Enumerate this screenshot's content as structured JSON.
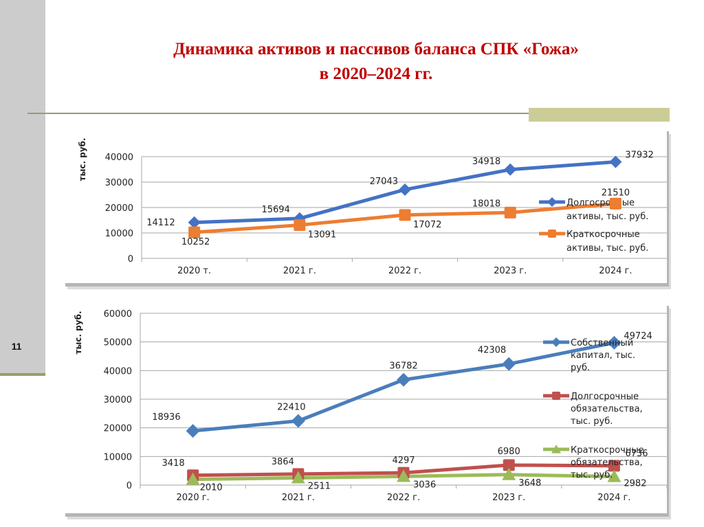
{
  "slide": {
    "number": "11",
    "title_line1": "Динамика активов и пассивов баланса СПК «Гожа»",
    "title_line2": "в 2020–2024 гг.",
    "colors": {
      "title": "#c00000",
      "sidebar": "#cccccc",
      "accent": "#9a9a6e"
    }
  },
  "chart_data": [
    {
      "type": "line",
      "title": "",
      "xlabel": "",
      "ylabel": "тыс. руб.",
      "categories": [
        "2020 т.",
        "2021 г.",
        "2022 г.",
        "2023 г.",
        "2024 г."
      ],
      "ylim": [
        0,
        40000
      ],
      "yticks": [
        "0",
        "10000",
        "20000",
        "30000",
        "40000"
      ],
      "grid": true,
      "legend_position": "right",
      "series": [
        {
          "name": "Долгосрочные активы, тыс. руб.",
          "legend_lines": [
            "Долгосрочные",
            "активы, тыс. руб."
          ],
          "color": "#4472c4",
          "marker": "diamond",
          "values": [
            14112,
            15694,
            27043,
            34918,
            37932
          ]
        },
        {
          "name": "Краткосрочные активы, тыс. руб.",
          "legend_lines": [
            "Краткосрочные",
            "активы, тыс. руб."
          ],
          "color": "#ed7d31",
          "marker": "square",
          "values": [
            10252,
            13091,
            17072,
            18018,
            21510
          ]
        }
      ]
    },
    {
      "type": "line",
      "title": "",
      "xlabel": "",
      "ylabel": "тыс. руб.",
      "categories": [
        "2020 г.",
        "2021 г.",
        "2022 г.",
        "2023 г.",
        "2024 г."
      ],
      "ylim": [
        0,
        60000
      ],
      "yticks": [
        "0",
        "10000",
        "20000",
        "30000",
        "40000",
        "50000",
        "60000"
      ],
      "grid": true,
      "legend_position": "right",
      "series": [
        {
          "name": "Собственный капитал, тыс. руб.",
          "legend_lines": [
            "Собственный",
            "капитал, тыс.",
            "руб."
          ],
          "color": "#4a7ebb",
          "marker": "diamond",
          "values": [
            18936,
            22410,
            36782,
            42308,
            49724
          ]
        },
        {
          "name": "Долгосрочные обязательства, тыс. руб.",
          "legend_lines": [
            "Долгосрочные",
            "обязательства,",
            "тыс. руб."
          ],
          "color": "#c0504d",
          "marker": "square",
          "values": [
            3418,
            3864,
            4297,
            6980,
            6736
          ]
        },
        {
          "name": "Краткосрочные обязательства, тыс. руб.",
          "legend_lines": [
            "Краткосрочные",
            "обязательства,",
            "тыс. руб."
          ],
          "color": "#9bbb59",
          "marker": "triangle",
          "values": [
            2010,
            2511,
            3036,
            3648,
            2982
          ]
        }
      ]
    }
  ]
}
